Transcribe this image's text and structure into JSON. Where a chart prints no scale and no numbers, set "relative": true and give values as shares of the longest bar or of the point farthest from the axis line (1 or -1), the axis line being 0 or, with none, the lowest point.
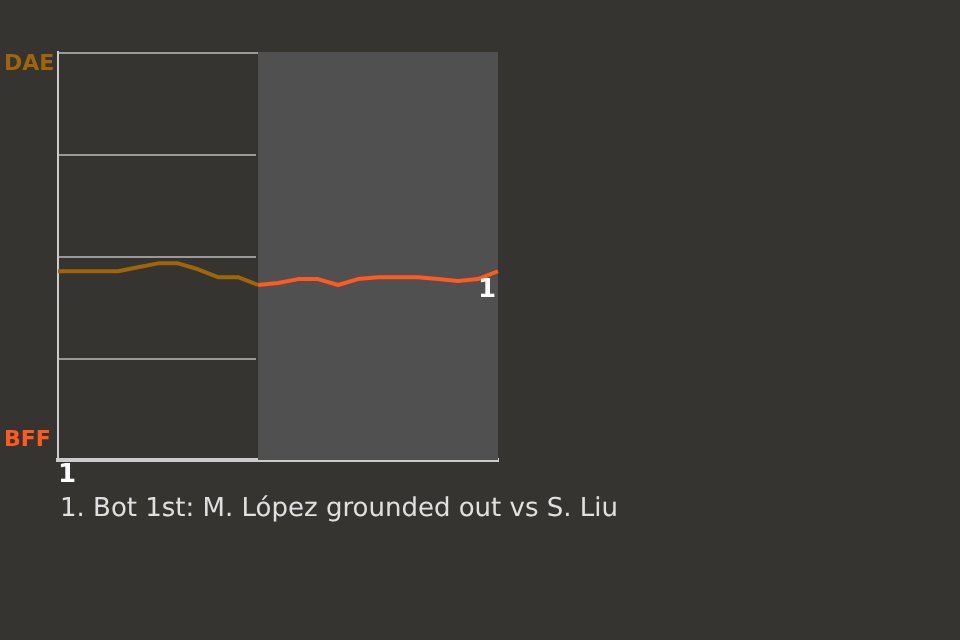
{
  "chart_data": {
    "type": "line",
    "relative": true,
    "categories": [
      null,
      null,
      null,
      null,
      null,
      null,
      null,
      null,
      null,
      null,
      null,
      null,
      null,
      null,
      null,
      null,
      null,
      null,
      null,
      null,
      null,
      null,
      null
    ],
    "legend": false,
    "marker": "none",
    "series": [
      {
        "color": "#a0650a",
        "values": [
          0.96,
          0.96,
          0.96,
          0.96,
          0.98,
          1,
          1,
          0.97,
          0.93,
          0.93,
          0.89,
          null,
          null,
          null,
          null,
          null,
          null,
          null,
          null,
          null,
          null,
          null,
          null
        ]
      },
      {
        "color": "#ff5a1f",
        "values": [
          null,
          null,
          null,
          null,
          null,
          null,
          null,
          null,
          null,
          null,
          0.89,
          0.9,
          0.92,
          0.92,
          0.89,
          0.92,
          0.93,
          0.93,
          0.93,
          0.92,
          0.91,
          0.92,
          0.96
        ]
      }
    ],
    "annotations": [
      "DAE",
      "BFF",
      "1",
      "1",
      "1. Bot 1st: M. López grounded out vs S. Liu"
    ]
  }
}
